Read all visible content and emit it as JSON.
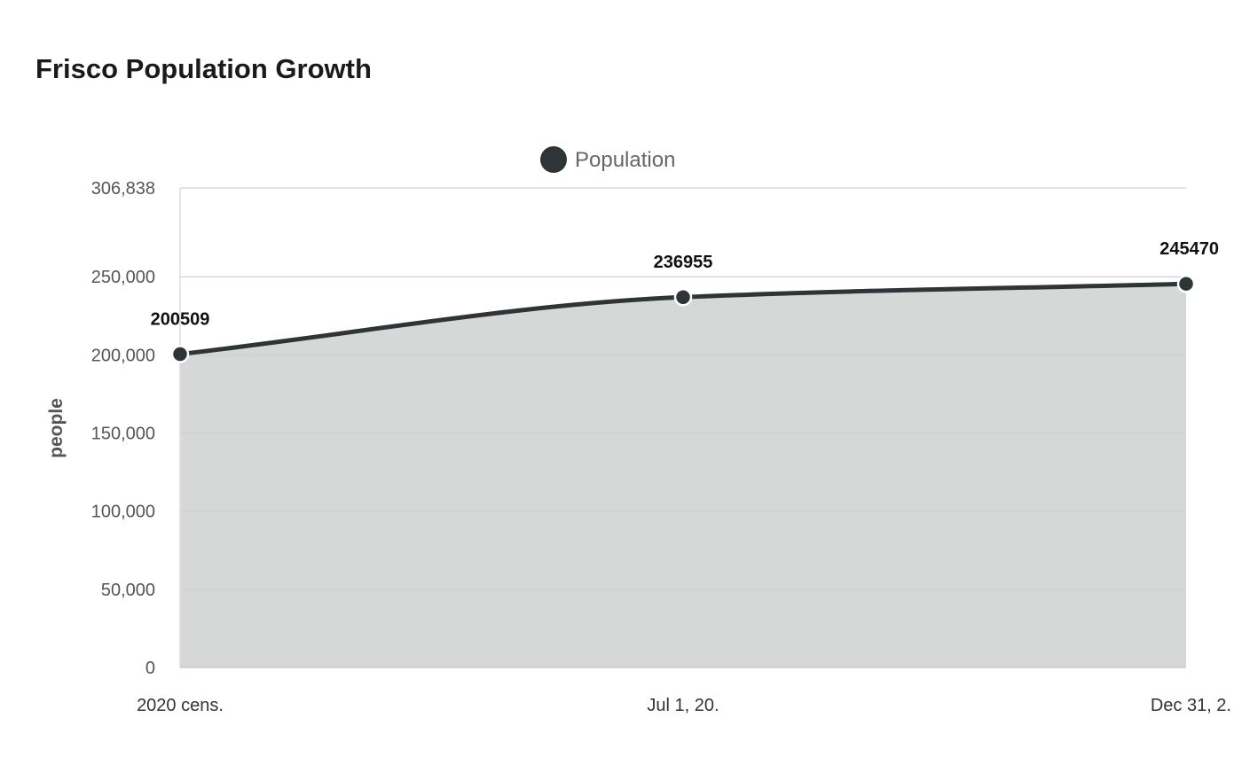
{
  "chart_data": {
    "type": "area",
    "title": "Frisco Population Growth",
    "xlabel": "",
    "ylabel": "people",
    "categories": [
      "2020 cens.",
      "Jul 1, 20.",
      "Dec 31, 2."
    ],
    "series": [
      {
        "name": "Population",
        "values": [
          200509,
          236955,
          245470
        ]
      }
    ],
    "ylim": [
      0,
      306838
    ],
    "yticks": [
      0,
      50000,
      100000,
      150000,
      200000,
      250000,
      306838
    ],
    "ytick_labels": [
      "0",
      "50,000",
      "100,000",
      "150,000",
      "200,000",
      "250,000",
      "306,838"
    ],
    "data_labels": [
      "200509",
      "236955",
      "245470"
    ],
    "legend_position": "top-center",
    "grid": true,
    "colors": {
      "line": "#2f3436",
      "area": "#d6d7d7",
      "grid": "#e3e3e3",
      "marker_stroke": "#ffffff"
    }
  }
}
